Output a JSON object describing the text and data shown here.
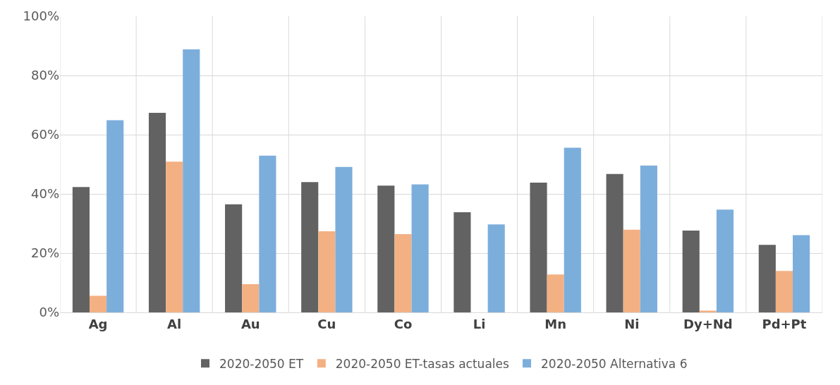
{
  "chart_data": {
    "type": "bar",
    "categories": [
      "Ag",
      "Al",
      "Au",
      "Cu",
      "Co",
      "Li",
      "Mn",
      "Ni",
      "Dy+Nd",
      "Pd+Pt"
    ],
    "series": [
      {
        "name": "2020-2050 ET",
        "color": "#626262",
        "values": [
          42.3,
          67.4,
          36.5,
          44.0,
          42.8,
          33.8,
          43.8,
          46.7,
          27.6,
          22.8
        ]
      },
      {
        "name": "2020-2050 ET-tasas actuales",
        "color": "#f3b083",
        "values": [
          5.6,
          50.9,
          9.5,
          27.4,
          26.4,
          null,
          12.8,
          27.9,
          0.6,
          14.0
        ]
      },
      {
        "name": "2020-2050 Alternativa 6",
        "color": "#7caedc",
        "values": [
          64.9,
          88.8,
          52.9,
          49.1,
          43.2,
          29.7,
          55.6,
          49.6,
          34.7,
          26.1
        ]
      }
    ],
    "ylim": [
      0,
      100
    ],
    "yticks": [
      {
        "value": 0,
        "label": "0%"
      },
      {
        "value": 20,
        "label": "20%"
      },
      {
        "value": 40,
        "label": "40%"
      },
      {
        "value": 60,
        "label": "60%"
      },
      {
        "value": 80,
        "label": "80%"
      },
      {
        "value": 100,
        "label": "100%"
      }
    ],
    "grid": true,
    "legend": "bottom"
  }
}
